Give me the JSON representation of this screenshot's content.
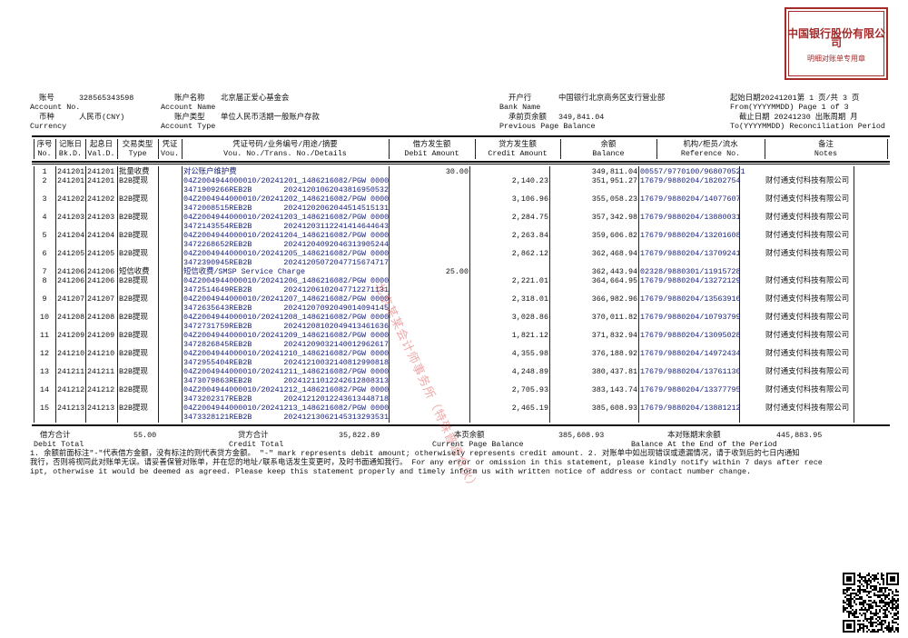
{
  "header": {
    "account_no_cn": "账号",
    "account_no_en": "Account No.",
    "account_no": "328565343598",
    "currency_cn": "币种",
    "currency_en": "Currency",
    "currency": "人民币(CNY)",
    "account_name_cn": "账户名称",
    "account_name_en": "Account Name",
    "account_name": "北京届正爱心基金会",
    "account_type_cn": "账户类型",
    "account_type_en": "Account Type",
    "account_type": "单位人民币活期一般账户存款",
    "bank_name_cn": "开户行",
    "bank_name_en": "Bank Name",
    "bank_name": "中国银行北京商务区支行营业部",
    "prev_balance_cn": "承前页余额",
    "prev_balance_en": "Previous Page Balance",
    "prev_balance": "349,841.04",
    "from_line_cn": "起始日期20241201第  1  页/共  3  页",
    "from_line_en": "From(YYYYMMDD)   Page  1  of  3",
    "to_line_cn": "截止日期 20241230 出账周期 月",
    "to_line_en": "To(YYYYMMDD)  Reconciliation Period"
  },
  "columns": [
    {
      "cn": "序号",
      "en": "No."
    },
    {
      "cn": "记账日",
      "en": "Bk.D."
    },
    {
      "cn": "起息日",
      "en": "Val.D."
    },
    {
      "cn": "交易类型",
      "en": "Type"
    },
    {
      "cn": "凭证",
      "en": "Vou."
    },
    {
      "cn": "凭证号码/业务编号/用途/摘要",
      "en": "Vou. No./Trans. No./Details"
    },
    {
      "cn": "借方发生额",
      "en": "Debit Amount"
    },
    {
      "cn": "贷方发生额",
      "en": "Credit Amount"
    },
    {
      "cn": "余额",
      "en": "Balance"
    },
    {
      "cn": "机构/柜员/流水",
      "en": "Reference No."
    },
    {
      "cn": "备注",
      "en": "Notes"
    }
  ],
  "rows": [
    {
      "no": "1",
      "bk": "241201",
      "val": "241201",
      "type": "批量收费",
      "d1": "对公账户维护费",
      "d2a": "",
      "d2b": "",
      "debit": "30.00",
      "credit": "",
      "balance": "349,811.04",
      "ref": "00557/9770100/968070521",
      "notes": ""
    },
    {
      "no": "2",
      "bk": "241201",
      "val": "241201",
      "type": "B2B提现",
      "d1": "04Z2004944000010/20241201_1486216082/PGW 0000",
      "d2a": "3471909266REB2B",
      "d2b": "20241201062043816950532",
      "debit": "",
      "credit": "2,140.23",
      "balance": "351,951.27",
      "ref": "17679/9880204/18202754",
      "notes": "财付通支付科技有限公司"
    },
    {
      "no": "3",
      "bk": "241202",
      "val": "241202",
      "type": "B2B提现",
      "d1": "04Z2004944000010/20241202_1486216082/PGW 0000",
      "d2a": "3472008515REB2B",
      "d2b": "20241202062044514515131",
      "debit": "",
      "credit": "3,106.96",
      "balance": "355,058.23",
      "ref": "17679/9880204/14077607",
      "notes": "财付通支付科技有限公司"
    },
    {
      "no": "4",
      "bk": "241203",
      "val": "241203",
      "type": "B2B提现",
      "d1": "04Z2004944000010/20241203_1486216082/PGW 0000",
      "d2a": "3472143554REB2B",
      "d2b": "20241203112241414644643",
      "debit": "",
      "credit": "2,284.75",
      "balance": "357,342.98",
      "ref": "17679/9880204/13880031",
      "notes": "财付通支付科技有限公司"
    },
    {
      "no": "5",
      "bk": "241204",
      "val": "241204",
      "type": "B2B提现",
      "d1": "04Z2004944000010/20241204_1486216082/PGW 0000",
      "d2a": "3472268652REB2B",
      "d2b": "20241204092046313905244",
      "debit": "",
      "credit": "2,263.84",
      "balance": "359,606.82",
      "ref": "17679/9880204/13201608",
      "notes": "财付通支付科技有限公司"
    },
    {
      "no": "6",
      "bk": "241205",
      "val": "241205",
      "type": "B2B提现",
      "d1": "04Z2004944000010/20241205_1486216082/PGW 0000",
      "d2a": "3472390945REB2B",
      "d2b": "20241205072047715674717",
      "debit": "",
      "credit": "2,862.12",
      "balance": "362,468.94",
      "ref": "17679/9880204/13709241",
      "notes": "财付通支付科技有限公司"
    },
    {
      "no": "7",
      "bk": "241206",
      "val": "241206",
      "type": "短信收费",
      "d1": "短信收费/SMSP Service Charge",
      "d2a": "",
      "d2b": "",
      "debit": "25.00",
      "credit": "",
      "balance": "362,443.94",
      "ref": "02328/9880301/11915728",
      "notes": ""
    },
    {
      "no": "8",
      "bk": "241206",
      "val": "241206",
      "type": "B2B提现",
      "d1": "04Z2004944000010/20241206_1486216082/PGW 0000",
      "d2a": "3472514649REB2B",
      "d2b": "20241206102047712271131",
      "debit": "",
      "credit": "2,221.01",
      "balance": "364,664.95",
      "ref": "17679/9880204/13272129",
      "notes": "财付通支付科技有限公司"
    },
    {
      "no": "9",
      "bk": "241207",
      "val": "241207",
      "type": "B2B提现",
      "d1": "04Z2004944000010/20241207_1486216082/PGW 0000",
      "d2a": "3472635643REB2B",
      "d2b": "20241207092049014094145",
      "debit": "",
      "credit": "2,318.01",
      "balance": "366,982.96",
      "ref": "17679/9880204/13563916",
      "notes": "财付通支付科技有限公司"
    },
    {
      "no": "10",
      "bk": "241208",
      "val": "241208",
      "type": "B2B提现",
      "d1": "04Z2004944000010/20241208_1486216082/PGW 0000",
      "d2a": "3472731759REB2B",
      "d2b": "20241208102049413461636",
      "debit": "",
      "credit": "3,028.86",
      "balance": "370,011.82",
      "ref": "17679/9880204/10793799",
      "notes": "财付通支付科技有限公司"
    },
    {
      "no": "11",
      "bk": "241209",
      "val": "241209",
      "type": "B2B提现",
      "d1": "04Z2004944000010/20241209_1486216082/PGW 0000",
      "d2a": "3472826845REB2B",
      "d2b": "20241209032140012962617",
      "debit": "",
      "credit": "1,821.12",
      "balance": "371,832.94",
      "ref": "17679/9880204/13095028",
      "notes": "财付通支付科技有限公司"
    },
    {
      "no": "12",
      "bk": "241210",
      "val": "241210",
      "type": "B2B提现",
      "d1": "04Z2004944000010/20241210_1486216082/PGW 0000",
      "d2a": "3472955404REB2B",
      "d2b": "20241210032140812990818",
      "debit": "",
      "credit": "4,355.98",
      "balance": "376,188.92",
      "ref": "17679/9880204/14972434",
      "notes": "财付通支付科技有限公司"
    },
    {
      "no": "13",
      "bk": "241211",
      "val": "241211",
      "type": "B2B提现",
      "d1": "04Z2004944000010/20241211_1486216082/PGW 0000",
      "d2a": "3473079863REB2B",
      "d2b": "20241211012242612808313",
      "debit": "",
      "credit": "4,248.89",
      "balance": "380,437.81",
      "ref": "17679/9880204/13761130",
      "notes": "财付通支付科技有限公司"
    },
    {
      "no": "14",
      "bk": "241212",
      "val": "241212",
      "type": "B2B提现",
      "d1": "04Z2004944000010/20241212_1486216082/PGW 0000",
      "d2a": "3473202317REB2B",
      "d2b": "20241212012243613448718",
      "debit": "",
      "credit": "2,705.93",
      "balance": "383,143.74",
      "ref": "17679/9880204/13377795",
      "notes": "财付通支付科技有限公司"
    },
    {
      "no": "15",
      "bk": "241213",
      "val": "241213",
      "type": "B2B提现",
      "d1": "04Z2004944000010/20241213_1486216082/PGW 0000",
      "d2a": "3473328121REB2B",
      "d2b": "20241213062145313293531",
      "debit": "",
      "credit": "2,465.19",
      "balance": "385,608.93",
      "ref": "17679/9880204/13881212",
      "notes": "财付通支付科技有限公司"
    }
  ],
  "totals": {
    "debit_cn": "借方合计",
    "debit_en": "Debit Total",
    "debit": "55.00",
    "credit_cn": "贷方合计",
    "credit_en": "Credit Total",
    "credit": "35,822.89",
    "page_bal_cn": "本页余额",
    "page_bal_en": "Current Page Balance",
    "page_bal": "385,608.93",
    "end_bal_cn": "本对账期末余额",
    "end_bal_en": "Balance At the End of the Period",
    "end_bal": "445,883.95"
  },
  "notes": {
    "line1": "1. 余额前面标注\"-\"代表借方金额，没有标注的则代表贷方金额。 \"-\" mark represents debit amount;  otherwisely represents credit amount.   2. 对账单中如出现错误或遗漏情况，请于收到后的七日内通知",
    "line2": "我行，否则将视同此对账单无误。请妥善保管对账单，并在您的地址/联系电话发生变更时，及时书面通知我行。 For any error or omission in this statement, please kindly notify within 7 days after rece",
    "line3": "ipt, otherwise it would be deemed as agreed. Please keep this statement properly and timely inform us with written notice of address or contact number change."
  },
  "stamps": {
    "bank_line1": "中国银行股份有限公司",
    "bank_line2": "明细对账单专用章",
    "audit": "北京某某会计师事务所（特殊普通合伙）",
    "color": "#a52a2a"
  }
}
